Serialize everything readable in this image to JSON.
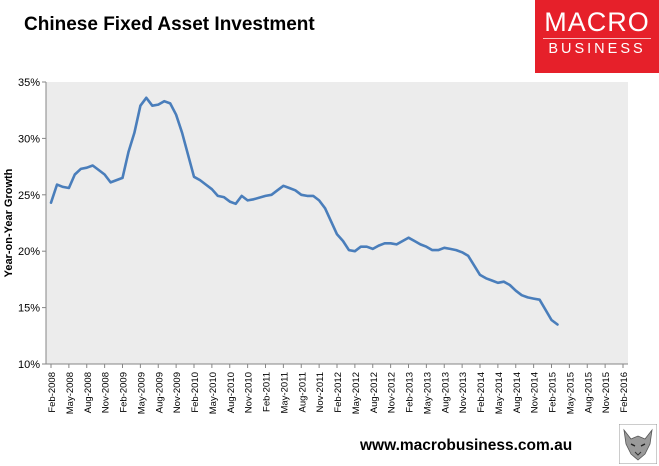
{
  "header": {
    "title": "Chinese Fixed Asset Investment",
    "logo_line1": "MACRO",
    "logo_line2": "BUSINESS"
  },
  "footer": {
    "website": "www.macrobusiness.com.au"
  },
  "colors": {
    "line": "#4a7ebb",
    "plot_bg": "#ececec",
    "logo_bg": "#e6202a"
  },
  "icons": {
    "logo_mark": "wolf-icon"
  },
  "chart_data": {
    "type": "line",
    "title": "Chinese Fixed Asset Investment",
    "xlabel": "",
    "ylabel": "Year-on-Year Growth",
    "ylim": [
      10,
      35
    ],
    "y_ticks": [
      "10%",
      "15%",
      "20%",
      "25%",
      "30%",
      "35%"
    ],
    "x_tick_labels": [
      "Feb-2008",
      "May-2008",
      "Aug-2008",
      "Nov-2008",
      "Feb-2009",
      "May-2009",
      "Aug-2009",
      "Nov-2009",
      "Feb-2010",
      "May-2010",
      "Aug-2010",
      "Nov-2010",
      "Feb-2011",
      "May-2011",
      "Aug-2011",
      "Nov-2011",
      "Feb-2012",
      "May-2012",
      "Aug-2012",
      "Nov-2012",
      "Feb-2013",
      "May-2013",
      "Aug-2013",
      "Nov-2013",
      "Feb-2014",
      "May-2014",
      "Aug-2014",
      "Nov-2014",
      "Feb-2015",
      "May-2015",
      "Aug-2015",
      "Nov-2015",
      "Feb-2016"
    ],
    "x_range": [
      "Feb-2008",
      "Feb-2016"
    ],
    "grid": false,
    "legend": "none",
    "series": [
      {
        "x": [
          "Feb-2008",
          "Mar-2008",
          "Apr-2008",
          "May-2008",
          "Jun-2008",
          "Jul-2008",
          "Aug-2008",
          "Sep-2008",
          "Oct-2008",
          "Nov-2008",
          "Dec-2008",
          "Feb-2009",
          "Mar-2009",
          "Apr-2009",
          "May-2009",
          "Jun-2009",
          "Jul-2009",
          "Aug-2009",
          "Sep-2009",
          "Oct-2009",
          "Nov-2009",
          "Dec-2009",
          "Feb-2010",
          "Mar-2010",
          "Apr-2010",
          "May-2010",
          "Jun-2010",
          "Jul-2010",
          "Aug-2010",
          "Sep-2010",
          "Oct-2010",
          "Nov-2010",
          "Dec-2010",
          "Feb-2011",
          "Mar-2011",
          "Apr-2011",
          "May-2011",
          "Jun-2011",
          "Jul-2011",
          "Aug-2011",
          "Sep-2011",
          "Oct-2011",
          "Nov-2011",
          "Dec-2011",
          "Feb-2012",
          "Mar-2012",
          "Apr-2012",
          "May-2012",
          "Jun-2012",
          "Jul-2012",
          "Aug-2012",
          "Sep-2012",
          "Oct-2012",
          "Nov-2012",
          "Dec-2012",
          "Feb-2013",
          "Mar-2013",
          "Apr-2013",
          "May-2013",
          "Jun-2013",
          "Jul-2013",
          "Aug-2013",
          "Sep-2013",
          "Oct-2013",
          "Nov-2013",
          "Dec-2013",
          "Feb-2014",
          "Mar-2014",
          "Apr-2014",
          "May-2014",
          "Jun-2014",
          "Jul-2014",
          "Aug-2014",
          "Sep-2014",
          "Oct-2014",
          "Nov-2014",
          "Dec-2014",
          "Feb-2015",
          "Mar-2015"
        ],
        "values": [
          24.3,
          25.9,
          25.7,
          25.6,
          26.8,
          27.3,
          27.4,
          27.6,
          27.2,
          26.8,
          26.1,
          26.5,
          28.8,
          30.5,
          32.9,
          33.6,
          32.9,
          33.0,
          33.3,
          33.1,
          32.1,
          30.5,
          26.6,
          26.3,
          25.9,
          25.5,
          24.9,
          24.8,
          24.4,
          24.2,
          24.9,
          24.5,
          24.6,
          24.9,
          25.0,
          25.4,
          25.8,
          25.6,
          25.4,
          25.0,
          24.9,
          24.9,
          24.5,
          23.8,
          21.5,
          20.9,
          20.1,
          20.0,
          20.4,
          20.4,
          20.2,
          20.5,
          20.7,
          20.7,
          20.6,
          21.2,
          20.9,
          20.6,
          20.4,
          20.1,
          20.1,
          20.3,
          20.2,
          20.1,
          19.9,
          19.6,
          17.9,
          17.6,
          17.4,
          17.2,
          17.3,
          17.0,
          16.5,
          16.1,
          15.9,
          15.8,
          15.7,
          13.9,
          13.5
        ]
      }
    ]
  }
}
